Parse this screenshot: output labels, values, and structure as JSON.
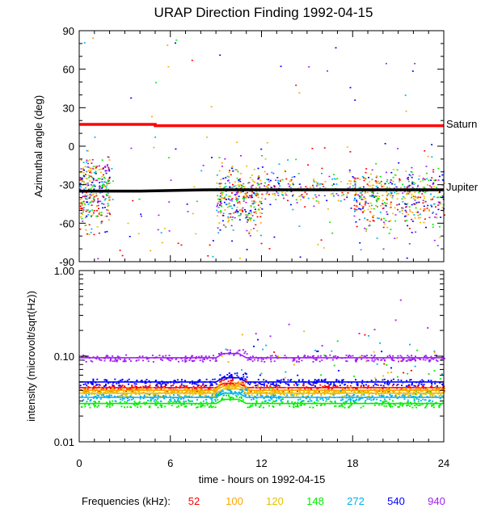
{
  "chart_data": [
    {
      "type": "scatter",
      "title": "URAP Direction Finding  1992-04-15",
      "ylabel": "Azimuthal angle (deg)",
      "xlim": [
        0,
        24
      ],
      "ylim": [
        -90,
        90
      ],
      "yticks": [
        "90",
        "60",
        "30",
        "0",
        "-30",
        "-60",
        "-90"
      ],
      "ytick_values": [
        90,
        60,
        30,
        0,
        -30,
        -60,
        -90
      ],
      "reference_lines": [
        {
          "name": "Saturn",
          "label": "Saturn",
          "color": "#ff0000",
          "x": [
            0,
            5,
            5,
            24
          ],
          "y": [
            17,
            17,
            16,
            16
          ]
        },
        {
          "name": "Jupiter",
          "label": "Jupiter",
          "color": "#000000",
          "x": [
            0,
            4,
            8.5,
            24
          ],
          "y": [
            -35,
            -35,
            -34,
            -34
          ]
        }
      ],
      "scatter_clusters": [
        {
          "x_range": [
            0,
            2
          ],
          "y_center": -35,
          "y_spread": 20
        },
        {
          "x_range": [
            9,
            12
          ],
          "y_center": -40,
          "y_spread": 20
        },
        {
          "x_range": [
            12,
            24
          ],
          "y_center": -32,
          "y_spread": 10
        },
        {
          "x_range": [
            18,
            24
          ],
          "y_center": -42,
          "y_spread": 18
        }
      ]
    },
    {
      "type": "line",
      "ylabel": "intensity (microvolt/sqrt(Hz))",
      "xlabel": "time - hours on 1992-04-15",
      "xlim": [
        0,
        24
      ],
      "ylim": [
        0.01,
        1.0
      ],
      "yscale": "log",
      "xticks": [
        "0",
        "6",
        "12",
        "18",
        "24"
      ],
      "xtick_values": [
        0,
        6,
        12,
        18,
        24
      ],
      "yticks": [
        "1.00",
        "0.10",
        "0.01"
      ],
      "ytick_values": [
        1.0,
        0.1,
        0.01
      ],
      "series": [
        {
          "name": "52",
          "color": "#ff0000",
          "baseline": 0.043
        },
        {
          "name": "100",
          "color": "#ffa500",
          "baseline": 0.04
        },
        {
          "name": "120",
          "color": "#e6c000",
          "baseline": 0.037
        },
        {
          "name": "148",
          "color": "#00ee00",
          "baseline": 0.028
        },
        {
          "name": "272",
          "color": "#00b0f0",
          "baseline": 0.033
        },
        {
          "name": "540",
          "color": "#0000ff",
          "baseline": 0.05
        },
        {
          "name": "940",
          "color": "#a020f0",
          "baseline": 0.096
        }
      ]
    }
  ],
  "legend": {
    "label": "Frequencies (kHz):",
    "items": [
      {
        "text": "52",
        "color": "#ff0000"
      },
      {
        "text": "100",
        "color": "#ffa500"
      },
      {
        "text": "120",
        "color": "#e6c000"
      },
      {
        "text": "148",
        "color": "#00ee00"
      },
      {
        "text": "272",
        "color": "#00b0f0"
      },
      {
        "text": "540",
        "color": "#0000ff"
      },
      {
        "text": "940",
        "color": "#a020f0"
      }
    ]
  }
}
